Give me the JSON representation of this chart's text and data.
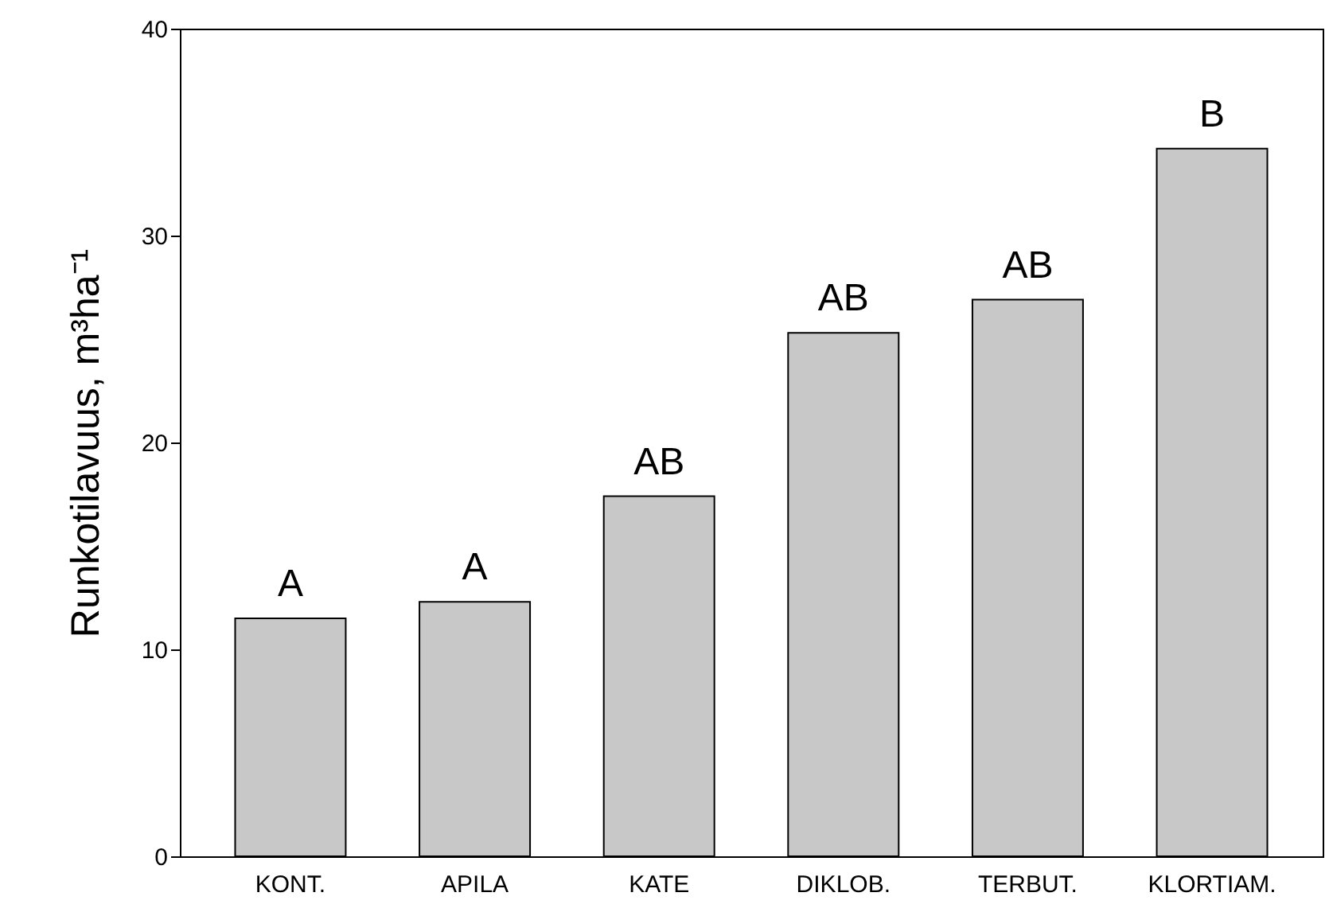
{
  "chart_data": {
    "type": "bar",
    "ylabel": "Runkotilavuus, m³ha⁻¹",
    "categories": [
      "KONT.",
      "APILA",
      "KATE",
      "DIKLOB.",
      "TERBUT.",
      "KLORTIAM."
    ],
    "values": [
      11.5,
      12.3,
      17.4,
      25.3,
      26.9,
      34.2
    ],
    "color": "#c8c8c8",
    "ylim": [
      0,
      40
    ],
    "yticks": [
      0,
      10,
      20,
      30,
      40
    ],
    "grid": false,
    "annotations": [
      {
        "text": "A",
        "x": "KONT.",
        "y": 11.5
      },
      {
        "text": "A",
        "x": "APILA",
        "y": 12.3
      },
      {
        "text": "AB",
        "x": "KATE",
        "y": 17.4
      },
      {
        "text": "AB",
        "x": "DIKLOB.",
        "y": 25.3
      },
      {
        "text": "AB",
        "x": "TERBUT.",
        "y": 26.9
      },
      {
        "text": "B",
        "x": "KLORTIAM.",
        "y": 34.2
      }
    ]
  }
}
